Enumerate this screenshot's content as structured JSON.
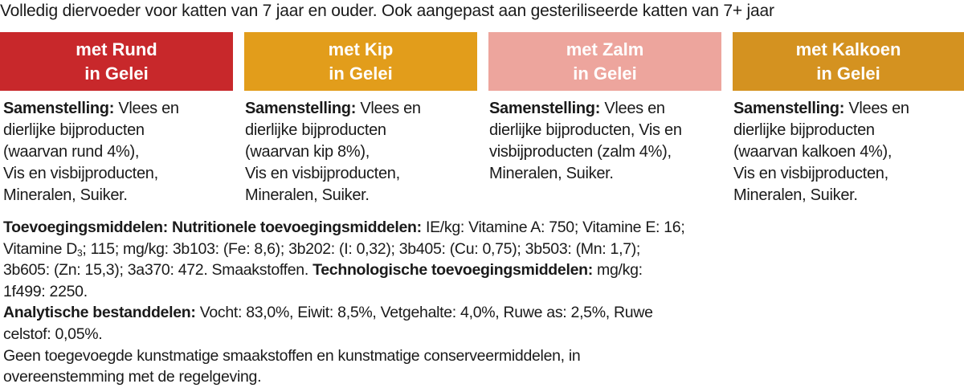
{
  "heading": "Volledig diervoeder voor katten van 7 jaar en ouder. Ook aangepast aan gesteriliseerde katten van 7+ jaar",
  "products": [
    {
      "color": "#c8282b",
      "title": [
        "met Rund",
        "in Gelei"
      ],
      "label": "Samenstelling:",
      "lines": [
        " Vlees en",
        "dierlijke bijproducten",
        "(waarvan rund 4%),",
        "Vis en visbijproducten,",
        "Mineralen, Suiker."
      ]
    },
    {
      "color": "#e29d1b",
      "title": [
        "met Kip",
        "in Gelei"
      ],
      "label": "Samenstelling:",
      "lines": [
        " Vlees en",
        "dierlijke bijproducten",
        "(waarvan kip 8%),",
        "Vis en visbijproducten,",
        "Mineralen, Suiker."
      ]
    },
    {
      "color": "#eda59d",
      "title": [
        "met Zalm",
        "in Gelei"
      ],
      "label": "Samenstelling:",
      "lines": [
        " Vlees en",
        "dierlijke bijproducten, Vis en",
        "visbijproducten (zalm 4%),",
        "Mineralen, Suiker."
      ]
    },
    {
      "color": "#d49220",
      "title": [
        "met Kalkoen",
        "in Gelei"
      ],
      "label": "Samenstelling:",
      "lines": [
        " Vlees en",
        "dierlijke bijproducten",
        "(waarvan kalkoen 4%),",
        "Vis en visbijproducten,",
        "Mineralen, Suiker."
      ]
    }
  ],
  "footer": [
    [
      {
        "text": "Toevoegingsmiddelen: Nutritionele toevoegingsmiddelen:",
        "bold": true
      },
      {
        "text": " IE/kg: Vitamine A: 750; Vitamine E: 16;"
      }
    ],
    [
      {
        "text": "Vitamine D"
      },
      {
        "text": "3",
        "sub": true
      },
      {
        "text": "; 115; mg/kg: 3b103: (Fe: 8,6); 3b202: (I: 0,32); 3b405: (Cu: 0,75); 3b503: (Mn: 1,7);"
      }
    ],
    [
      {
        "text": "3b605: (Zn: 15,3); 3a370: 472. Smaakstoffen. "
      },
      {
        "text": "Technologische toevoegingsmiddelen:",
        "bold": true
      },
      {
        "text": " mg/kg:"
      }
    ],
    [
      {
        "text": "1f499: 2250."
      }
    ],
    [
      {
        "text": "Analytische bestanddelen:",
        "bold": true
      },
      {
        "text": " Vocht: 83,0%, Eiwit: 8,5%, Vetgehalte: 4,0%, Ruwe as: 2,5%, Ruwe"
      }
    ],
    [
      {
        "text": "celstof: 0,05%."
      }
    ],
    [
      {
        "text": "Geen toegevoegde kunstmatige smaakstoffen en kunstmatige conserveermiddelen, in"
      }
    ],
    [
      {
        "text": "overeenstemming met de regelgeving."
      }
    ]
  ]
}
